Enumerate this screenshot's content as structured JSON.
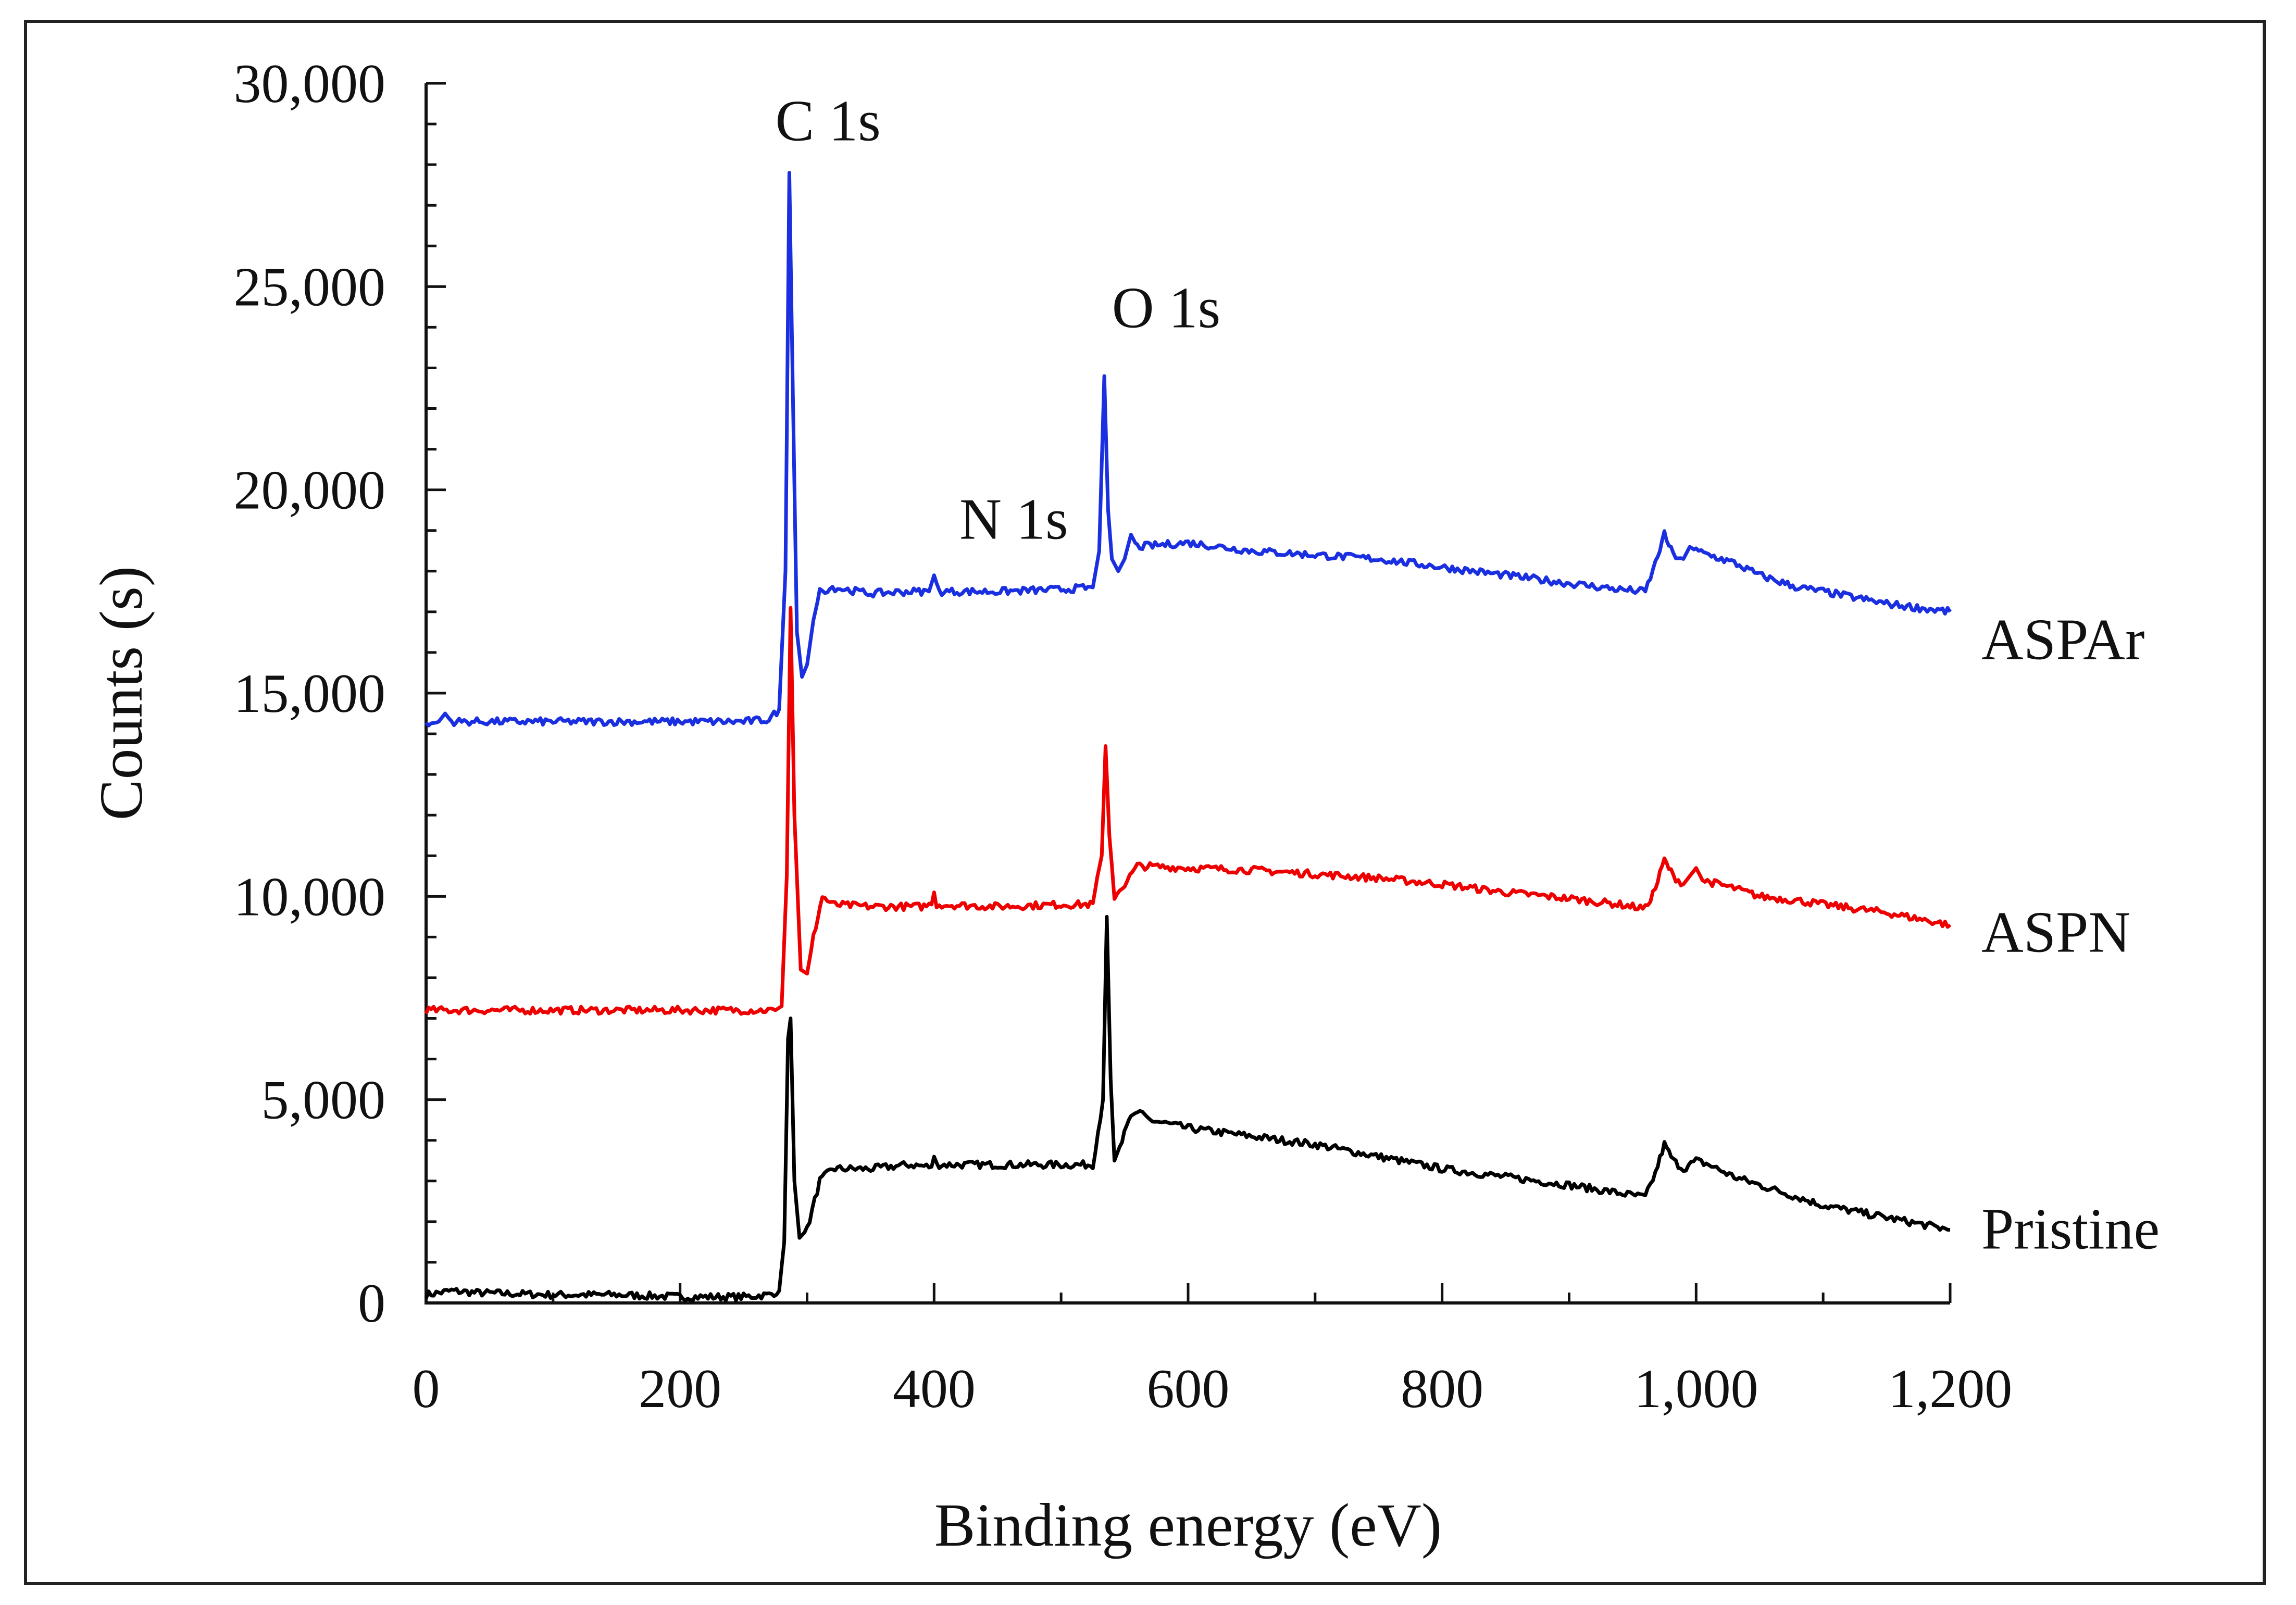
{
  "chart_data": {
    "type": "line",
    "title": "",
    "xlabel": "Binding energy (eV)",
    "ylabel": "Counts (s)",
    "xlim": [
      0,
      1200
    ],
    "ylim": [
      0,
      30000
    ],
    "xticks": [
      0,
      200,
      400,
      600,
      800,
      1000,
      1200
    ],
    "xtick_labels": [
      "0",
      "200",
      "400",
      "600",
      "800",
      "1,000",
      "1,200"
    ],
    "yticks": [
      0,
      5000,
      10000,
      15000,
      20000,
      25000,
      30000
    ],
    "ytick_labels": [
      "0",
      "5,000",
      "10,000",
      "15,000",
      "20,000",
      "25,000",
      "30,000"
    ],
    "grid": false,
    "annotations": [
      {
        "text": "C 1s",
        "x": 275,
        "y": 28600
      },
      {
        "text": "O 1s",
        "x": 540,
        "y": 24000
      },
      {
        "text": "N 1s",
        "x": 420,
        "y": 18800
      }
    ],
    "series": [
      {
        "name": "Pristine",
        "color": "#000000",
        "label_y": 1800,
        "points": [
          [
            0,
            200
          ],
          [
            20,
            300
          ],
          [
            40,
            250
          ],
          [
            100,
            200
          ],
          [
            150,
            200
          ],
          [
            200,
            150
          ],
          [
            250,
            150
          ],
          [
            270,
            200
          ],
          [
            278,
            300
          ],
          [
            282,
            1500
          ],
          [
            285,
            6500
          ],
          [
            287,
            7000
          ],
          [
            290,
            3000
          ],
          [
            294,
            1600
          ],
          [
            300,
            1800
          ],
          [
            310,
            3000
          ],
          [
            320,
            3300
          ],
          [
            350,
            3300
          ],
          [
            380,
            3400
          ],
          [
            398,
            3350
          ],
          [
            400,
            3600
          ],
          [
            402,
            3400
          ],
          [
            450,
            3400
          ],
          [
            500,
            3400
          ],
          [
            525,
            3400
          ],
          [
            533,
            5000
          ],
          [
            536,
            9500
          ],
          [
            539,
            5500
          ],
          [
            542,
            3500
          ],
          [
            548,
            4000
          ],
          [
            555,
            4600
          ],
          [
            560,
            4700
          ],
          [
            570,
            4500
          ],
          [
            600,
            4300
          ],
          [
            650,
            4100
          ],
          [
            700,
            3900
          ],
          [
            750,
            3600
          ],
          [
            800,
            3300
          ],
          [
            850,
            3100
          ],
          [
            900,
            2900
          ],
          [
            940,
            2700
          ],
          [
            960,
            2600
          ],
          [
            968,
            3200
          ],
          [
            975,
            3900
          ],
          [
            982,
            3500
          ],
          [
            990,
            3300
          ],
          [
            1000,
            3500
          ],
          [
            1010,
            3400
          ],
          [
            1030,
            3100
          ],
          [
            1050,
            2900
          ],
          [
            1080,
            2600
          ],
          [
            1100,
            2400
          ],
          [
            1150,
            2100
          ],
          [
            1200,
            1800
          ]
        ]
      },
      {
        "name": "ASPN",
        "color": "#ee0000",
        "label_y": 9100,
        "points": [
          [
            0,
            7200
          ],
          [
            50,
            7200
          ],
          [
            100,
            7200
          ],
          [
            150,
            7200
          ],
          [
            200,
            7200
          ],
          [
            250,
            7200
          ],
          [
            275,
            7200
          ],
          [
            280,
            7300
          ],
          [
            284,
            10500
          ],
          [
            287,
            17100
          ],
          [
            290,
            12000
          ],
          [
            295,
            8200
          ],
          [
            300,
            8100
          ],
          [
            305,
            9000
          ],
          [
            312,
            10000
          ],
          [
            320,
            9800
          ],
          [
            350,
            9750
          ],
          [
            390,
            9750
          ],
          [
            398,
            9800
          ],
          [
            400,
            10100
          ],
          [
            402,
            9800
          ],
          [
            450,
            9750
          ],
          [
            500,
            9800
          ],
          [
            525,
            9800
          ],
          [
            532,
            11000
          ],
          [
            535,
            13700
          ],
          [
            538,
            11500
          ],
          [
            542,
            10000
          ],
          [
            550,
            10300
          ],
          [
            560,
            10750
          ],
          [
            600,
            10700
          ],
          [
            650,
            10650
          ],
          [
            700,
            10550
          ],
          [
            750,
            10450
          ],
          [
            800,
            10300
          ],
          [
            850,
            10100
          ],
          [
            900,
            9950
          ],
          [
            940,
            9800
          ],
          [
            960,
            9700
          ],
          [
            968,
            10200
          ],
          [
            975,
            10900
          ],
          [
            982,
            10500
          ],
          [
            990,
            10300
          ],
          [
            995,
            10500
          ],
          [
            1000,
            10700
          ],
          [
            1005,
            10400
          ],
          [
            1030,
            10200
          ],
          [
            1050,
            10000
          ],
          [
            1080,
            9900
          ],
          [
            1100,
            9800
          ],
          [
            1150,
            9600
          ],
          [
            1200,
            9300
          ]
        ]
      },
      {
        "name": "ASPAr",
        "color": "#1a2fe0",
        "label_y": 16300,
        "points": [
          [
            0,
            14200
          ],
          [
            10,
            14300
          ],
          [
            15,
            14500
          ],
          [
            20,
            14300
          ],
          [
            50,
            14300
          ],
          [
            100,
            14300
          ],
          [
            150,
            14300
          ],
          [
            200,
            14300
          ],
          [
            250,
            14300
          ],
          [
            270,
            14350
          ],
          [
            278,
            14600
          ],
          [
            283,
            18000
          ],
          [
            286,
            27800
          ],
          [
            289,
            22000
          ],
          [
            292,
            16500
          ],
          [
            296,
            15400
          ],
          [
            300,
            15700
          ],
          [
            305,
            16800
          ],
          [
            310,
            17500
          ],
          [
            320,
            17600
          ],
          [
            350,
            17450
          ],
          [
            380,
            17500
          ],
          [
            396,
            17500
          ],
          [
            400,
            17900
          ],
          [
            404,
            17500
          ],
          [
            450,
            17500
          ],
          [
            500,
            17550
          ],
          [
            525,
            17600
          ],
          [
            530,
            18500
          ],
          [
            534,
            22800
          ],
          [
            537,
            19500
          ],
          [
            540,
            18300
          ],
          [
            545,
            18000
          ],
          [
            550,
            18300
          ],
          [
            555,
            18900
          ],
          [
            560,
            18600
          ],
          [
            600,
            18700
          ],
          [
            650,
            18500
          ],
          [
            700,
            18400
          ],
          [
            750,
            18300
          ],
          [
            800,
            18100
          ],
          [
            850,
            17900
          ],
          [
            900,
            17700
          ],
          [
            940,
            17550
          ],
          [
            960,
            17500
          ],
          [
            968,
            18200
          ],
          [
            975,
            18900
          ],
          [
            982,
            18400
          ],
          [
            990,
            18300
          ],
          [
            995,
            18600
          ],
          [
            1000,
            18500
          ],
          [
            1030,
            18200
          ],
          [
            1050,
            17900
          ],
          [
            1080,
            17600
          ],
          [
            1100,
            17500
          ],
          [
            1150,
            17200
          ],
          [
            1200,
            17000
          ]
        ]
      }
    ]
  }
}
